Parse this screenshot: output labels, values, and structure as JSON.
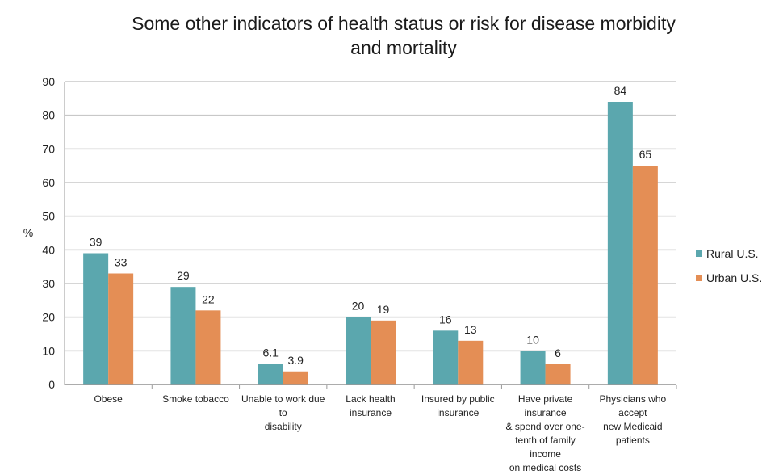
{
  "chart_data": {
    "type": "bar",
    "title_lines": [
      "Some other indicators of health status or risk for disease morbidity",
      "and mortality"
    ],
    "ylabel": "%",
    "ylim": [
      0,
      90
    ],
    "yticks": [
      0,
      10,
      20,
      30,
      40,
      50,
      60,
      70,
      80,
      90
    ],
    "grid": true,
    "legend_position": "right",
    "categories": [
      [
        "Obese"
      ],
      [
        "Smoke tobacco"
      ],
      [
        "Unable to work due to",
        "disability"
      ],
      [
        "Lack health insurance"
      ],
      [
        "Insured by public",
        "insurance"
      ],
      [
        "Have private insurance",
        "& spend over one-",
        "tenth of family income",
        "on medical costs"
      ],
      [
        "Physicians who accept",
        "new Medicaid patients"
      ]
    ],
    "series": [
      {
        "name": "Rural U.S.",
        "color": "#5ba7ae",
        "values": [
          39,
          29,
          6.1,
          20,
          16,
          10,
          84
        ],
        "labels": [
          "39",
          "29",
          "6.1",
          "20",
          "16",
          "10",
          "84"
        ]
      },
      {
        "name": "Urban U.S.",
        "color": "#e48e55",
        "values": [
          33,
          22,
          3.9,
          19,
          13,
          6,
          65
        ],
        "labels": [
          "33",
          "22",
          "3.9",
          "19",
          "13",
          "6",
          "65"
        ]
      }
    ]
  }
}
